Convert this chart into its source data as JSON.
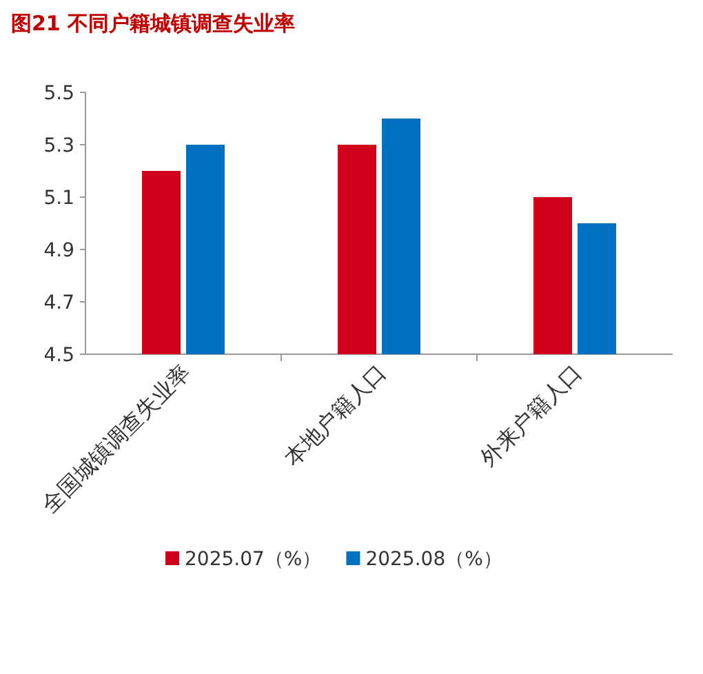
{
  "chart_data": {
    "type": "bar",
    "title": "图21  不同户籍城镇调查失业率",
    "categories": [
      "全国城镇调查失业率",
      "本地户籍人口",
      "外来户籍人口"
    ],
    "series": [
      {
        "name": "2025.07（%）",
        "color": "#d0021b",
        "values": [
          5.2,
          5.3,
          5.1
        ]
      },
      {
        "name": "2025.08（%）",
        "color": "#0070c0",
        "values": [
          5.3,
          5.4,
          5.0
        ]
      }
    ],
    "ylim": [
      4.5,
      5.5
    ],
    "yticks": [
      4.5,
      4.7,
      4.9,
      5.1,
      5.3,
      5.5
    ],
    "grid": false,
    "legend": "bottom"
  }
}
